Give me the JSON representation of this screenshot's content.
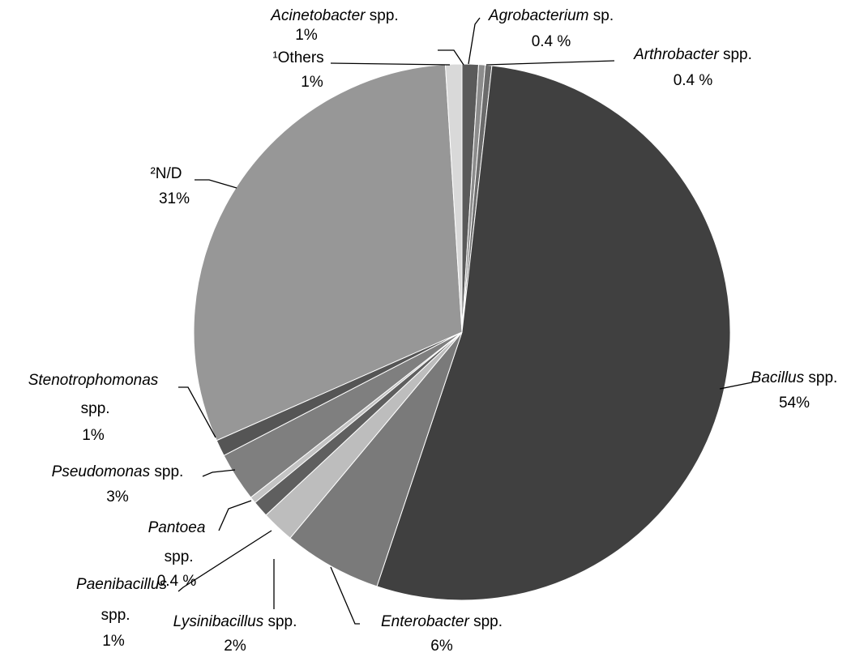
{
  "chart_data": {
    "type": "pie",
    "categories": [
      "Acinetobacter spp.",
      "Agrobacterium sp.",
      "Arthrobacter spp.",
      "Bacillus spp.",
      "Enterobacter spp.",
      "Lysinibacillus spp.",
      "Paenibacillus spp.",
      "Pantoea spp.",
      "Pseudomonas spp.",
      "Stenotrophomonas spp.",
      "²N/D",
      "¹Others"
    ],
    "values": [
      1,
      0.4,
      0.4,
      54,
      6,
      2,
      1,
      0.4,
      3,
      1,
      31,
      1
    ],
    "value_labels": [
      "1%",
      "0.4 %",
      "0.4 %",
      "54%",
      "6%",
      "2%",
      "1%",
      "0.4 %",
      "3%",
      "1%",
      "31%",
      "1%"
    ],
    "italic_genus": [
      true,
      true,
      true,
      true,
      true,
      true,
      true,
      true,
      true,
      true,
      false,
      false
    ],
    "colors": [
      "#5a5a5a",
      "#8c8c8c",
      "#6b6b6b",
      "#404040",
      "#7a7a7a",
      "#bdbdbd",
      "#5f5f5f",
      "#c4c4c4",
      "#7f7f7f",
      "#555555",
      "#979797",
      "#d9d9d9"
    ]
  }
}
